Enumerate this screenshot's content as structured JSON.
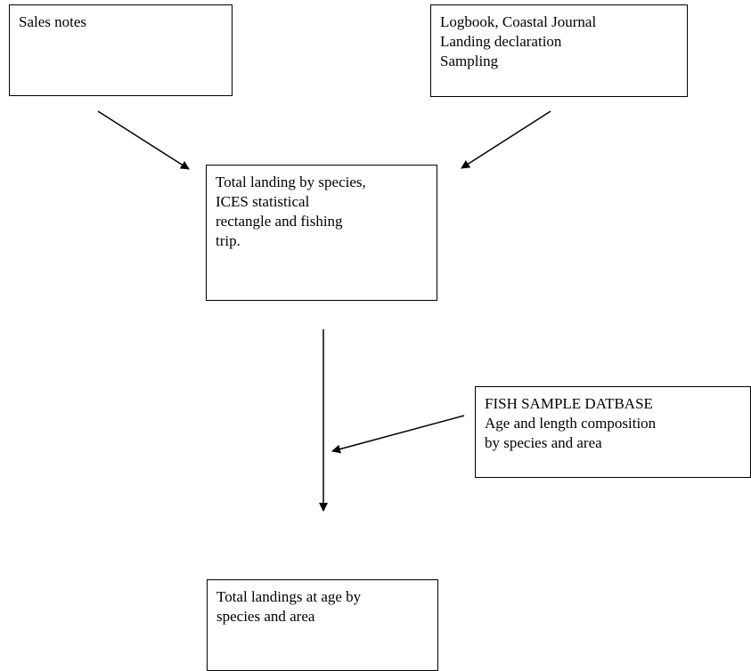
{
  "diagram": {
    "nodes": {
      "sales_notes": {
        "lines": [
          "Sales notes"
        ]
      },
      "logbook": {
        "lines": [
          "Logbook, Coastal Journal",
          "Landing declaration",
          "Sampling"
        ]
      },
      "total_landing": {
        "lines": [
          "Total landing by species,",
          "ICES statistical",
          "rectangle and fishing",
          "trip."
        ]
      },
      "fish_sample": {
        "lines": [
          "FISH SAMPLE DATBASE",
          "Age and length composition",
          "by species and area"
        ]
      },
      "total_age": {
        "lines": [
          "Total landings at age by",
          "species and area"
        ]
      }
    },
    "edges": [
      {
        "from": "sales_notes",
        "to": "total_landing"
      },
      {
        "from": "logbook",
        "to": "total_landing"
      },
      {
        "from": "total_landing",
        "to": "total_age"
      },
      {
        "from": "fish_sample",
        "to": "total_landing-to-total_age"
      }
    ]
  }
}
